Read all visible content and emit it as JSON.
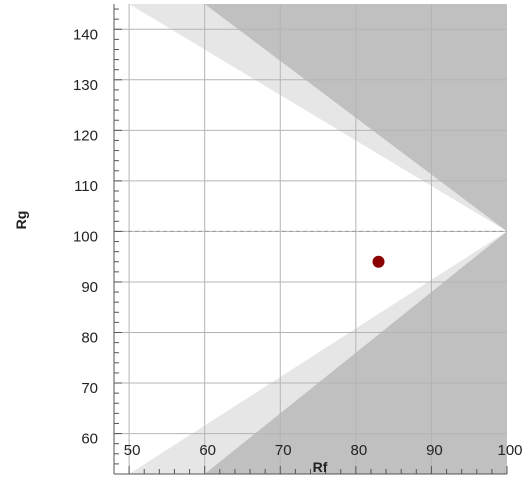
{
  "chart_data": {
    "type": "scatter",
    "xlabel": "Rf",
    "ylabel": "Rg",
    "xlim": [
      48,
      100
    ],
    "ylim": [
      52,
      145
    ],
    "x_ticks": [
      50,
      60,
      70,
      80,
      90,
      100
    ],
    "y_ticks": [
      60,
      70,
      80,
      90,
      100,
      110,
      120,
      130,
      140
    ],
    "grid": true,
    "reference_line": {
      "y": 100,
      "style": "dashed"
    },
    "regions": {
      "inner_gamut_apex": [
        100,
        100
      ],
      "inner_gamut_edge_x": 50,
      "outer_gamut_apex": [
        100,
        100
      ],
      "outer_gamut_edge_x": 60,
      "colors": {
        "background": "#ffffff",
        "outer_band": "#e6e6e6",
        "out_of_range": "#c0c0c0"
      }
    },
    "points": [
      {
        "x": 83,
        "y": 94,
        "color": "#8b0000"
      }
    ],
    "colors": {
      "grid": "#b4b4b4",
      "axis": "#555555",
      "point": "#8b0000",
      "reference": "#9a9a9a"
    }
  }
}
